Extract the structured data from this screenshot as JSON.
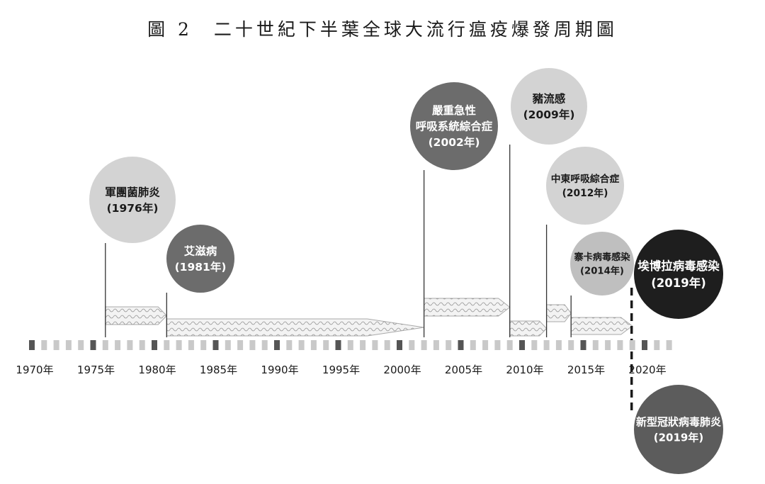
{
  "title": "圖 2　二十世紀下半葉全球大流行瘟疫爆發周期圖",
  "axis": {
    "start_year": 1970,
    "end_year": 2022,
    "labels": [
      "1970年",
      "1975年",
      "1980年",
      "1985年",
      "1990年",
      "1995年",
      "2000年",
      "2005年",
      "2010年",
      "2015年",
      "2020年"
    ]
  },
  "colors": {
    "ink": "#1a1a1a",
    "leader": "#333333",
    "arrow_fill": "#f3f3f3",
    "arrow_stroke": "#aaaaaa",
    "wave": "#999999",
    "tick_major": "#555555",
    "tick_minor": "#c9c9c9"
  },
  "epidemics": [
    {
      "id": "legionnaires",
      "name": "軍團菌肺炎",
      "year_label": "(1976年)",
      "year": 1976,
      "end": 1981,
      "fill": "#d3d3d3",
      "text": "#1a1a1a"
    },
    {
      "id": "aids",
      "name": "艾滋病",
      "year_label": "(1981年)",
      "year": 1981,
      "end": 2002,
      "fill": "#6c6c6c",
      "text": "#ffffff"
    },
    {
      "id": "sars",
      "name": "嚴重急性|呼吸系統綜合症",
      "year_label": "(2002年)",
      "year": 2002,
      "end": 2009,
      "fill": "#6c6c6c",
      "text": "#ffffff"
    },
    {
      "id": "swine-flu",
      "name": "豬流感",
      "year_label": "(2009年)",
      "year": 2009,
      "end": 2012,
      "fill": "#d3d3d3",
      "text": "#1a1a1a"
    },
    {
      "id": "mers",
      "name": "中東呼吸綜合症",
      "year_label": "(2012年)",
      "year": 2012,
      "end": 2014,
      "fill": "#d3d3d3",
      "text": "#1a1a1a"
    },
    {
      "id": "zika",
      "name": "寨卡病毒感染",
      "year_label": "(2014年)",
      "year": 2014,
      "end": 2019,
      "fill": "#bfbfbf",
      "text": "#1a1a1a"
    },
    {
      "id": "ebola",
      "name": "埃博拉病毒感染",
      "year_label": "(2019年)",
      "year": 2019,
      "fill": "#1e1e1e",
      "text": "#ffffff"
    },
    {
      "id": "covid19",
      "name": "新型冠狀病毒肺炎",
      "year_label": "(2019年)",
      "year": 2019,
      "fill": "#5c5c5c",
      "text": "#ffffff"
    }
  ]
}
